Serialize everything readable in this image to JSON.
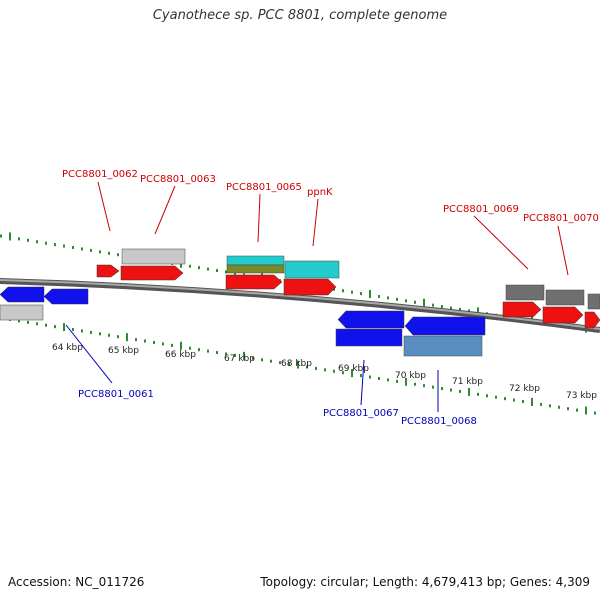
{
  "title": "Cyanothece sp. PCC 8801, complete genome",
  "footer": {
    "accession": "Accession: NC_011726",
    "stats": "Topology: circular; Length: 4,679,413 bp; Genes: 4,309"
  },
  "colors": {
    "ruler_tick": "#2e8b2e",
    "backbone": "#808080",
    "label_red": "#cc0000",
    "label_blue": "#0000bb",
    "cds_red": "#ee1111",
    "cds_blue": "#1111ee",
    "gene_light_gray": "#c8c8c8",
    "gene_dark_gray": "#6f6f6f",
    "gene_cyan": "#22cccc",
    "gene_olive": "#7a8a2a",
    "gene_steel": "#5b8ec0"
  },
  "ruler": {
    "labels": [
      "64 kbp",
      "65 kbp",
      "66 kbp",
      "67 kbp",
      "68 kbp",
      "69 kbp",
      "70 kbp",
      "71 kbp",
      "72 kbp",
      "73 kbp"
    ]
  },
  "gene_labels": [
    {
      "text": "PCC8801_0062",
      "strand": "forward"
    },
    {
      "text": "PCC8801_0063",
      "strand": "forward"
    },
    {
      "text": "PCC8801_0065",
      "strand": "forward"
    },
    {
      "text": "ppnK",
      "strand": "forward"
    },
    {
      "text": "PCC8801_0069",
      "strand": "forward"
    },
    {
      "text": "PCC8801_0070",
      "strand": "forward"
    },
    {
      "text": "PCC8801_0061",
      "strand": "reverse"
    },
    {
      "text": "PCC8801_0067",
      "strand": "reverse"
    },
    {
      "text": "PCC8801_0068",
      "strand": "reverse"
    }
  ]
}
